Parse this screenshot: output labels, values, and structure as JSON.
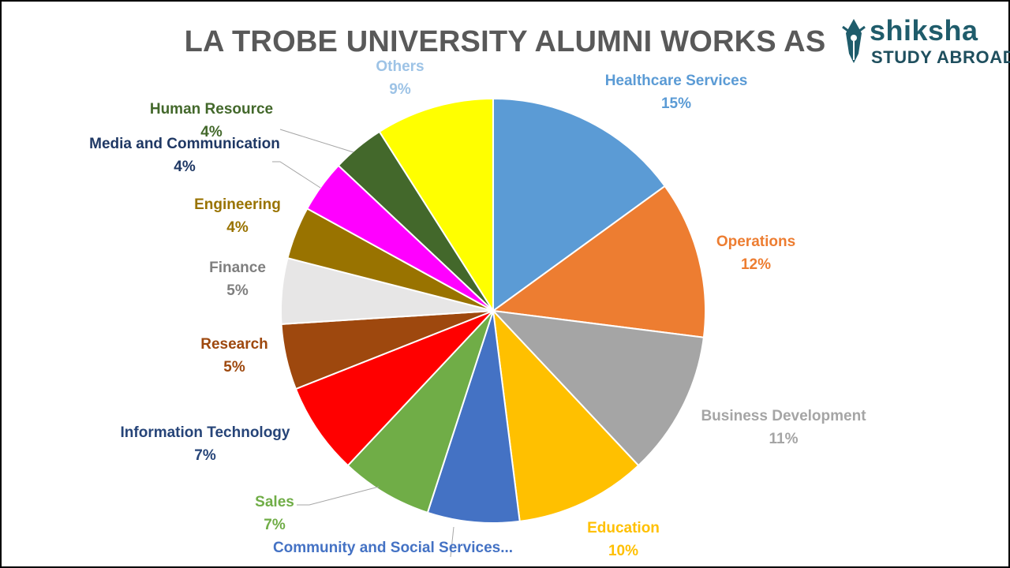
{
  "logo": {
    "brand": "shiksha",
    "sub": "STUDY ABROAD"
  },
  "chart_data": {
    "type": "pie",
    "title": "LA TROBE UNIVERSITY ALUMNI WORKS AS",
    "slices": [
      {
        "label": "Healthcare Services",
        "value": 15,
        "value_label": "15%",
        "color": "#5b9bd5"
      },
      {
        "label": "Operations",
        "value": 12,
        "value_label": "12%",
        "color": "#ed7d31"
      },
      {
        "label": "Business Development",
        "value": 11,
        "value_label": "11%",
        "color": "#a5a5a5"
      },
      {
        "label": "Education",
        "value": 10,
        "value_label": "10%",
        "color": "#ffc000"
      },
      {
        "label": "Community and Social Services...",
        "value": 7,
        "value_label": "",
        "color": "#4472c4"
      },
      {
        "label": "Sales",
        "value": 7,
        "value_label": "7%",
        "color": "#70ad47"
      },
      {
        "label": "Information Technology",
        "value": 7,
        "value_label": "7%",
        "color": "#ff0000"
      },
      {
        "label": "Research",
        "value": 5,
        "value_label": "5%",
        "color": "#9e480e"
      },
      {
        "label": "Finance",
        "value": 5,
        "value_label": "5%",
        "color": "#e7e6e6"
      },
      {
        "label": "Engineering",
        "value": 4,
        "value_label": "4%",
        "color": "#997300"
      },
      {
        "label": "Media and Communication",
        "value": 4,
        "value_label": "4%",
        "color": "#ff00ff"
      },
      {
        "label": "Human Resource",
        "value": 4,
        "value_label": "4%",
        "color": "#43682b"
      },
      {
        "label": "Others",
        "value": 9,
        "value_label": "9%",
        "color": "#ffff00"
      }
    ],
    "label_colors": {
      "Healthcare Services": "#5b9bd5",
      "Operations": "#ed7d31",
      "Business Development": "#a5a5a5",
      "Education": "#ffc000",
      "Community and Social Services...": "#4472c4",
      "Sales": "#70ad47",
      "Information Technology": "#264478",
      "Research": "#9e480e",
      "Finance": "#7f7f7f",
      "Engineering": "#997300",
      "Media and Communication": "#1f3864",
      "Human Resource": "#43682b",
      "Others": "#9dc3e6"
    }
  }
}
